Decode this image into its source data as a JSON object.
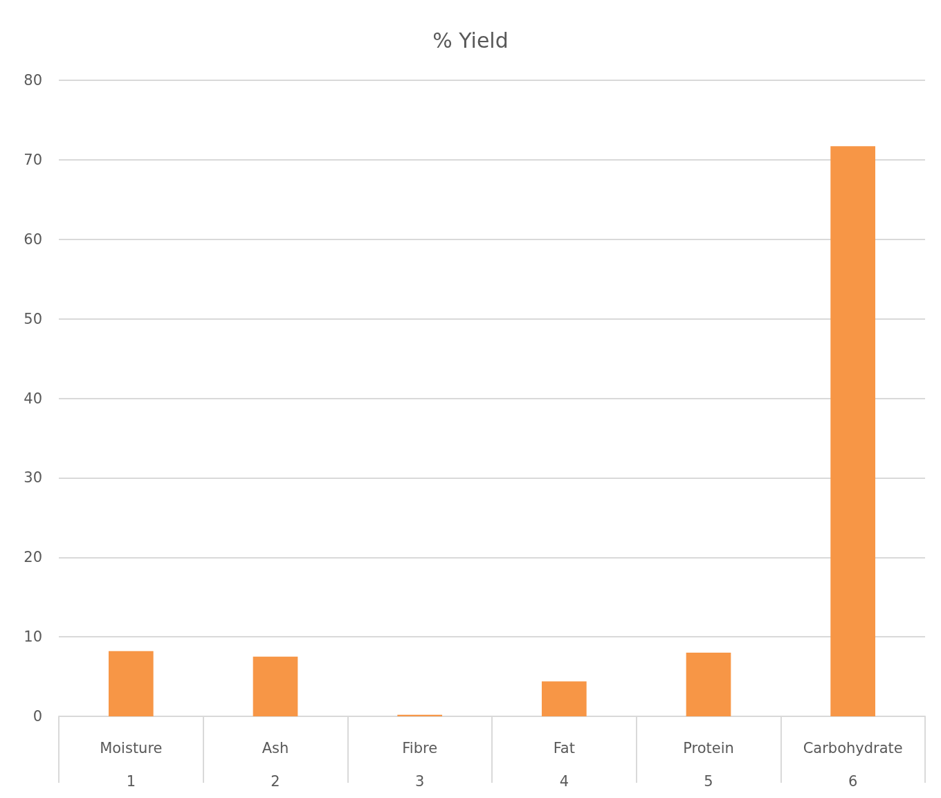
{
  "chart_data": {
    "type": "bar",
    "title": "% Yield",
    "categories": [
      "Moisture\n1",
      "Ash\n2",
      "Fibre\n3",
      "Fat\n4",
      "Protein\n5",
      "Carbohydrate\n6"
    ],
    "values": [
      8.2,
      7.5,
      0.2,
      4.4,
      8.0,
      71.7
    ],
    "color": "#f79646",
    "ylim": [
      0,
      80
    ],
    "yticks": [
      0,
      10,
      20,
      30,
      40,
      50,
      60,
      70,
      80
    ],
    "grid": "y"
  }
}
